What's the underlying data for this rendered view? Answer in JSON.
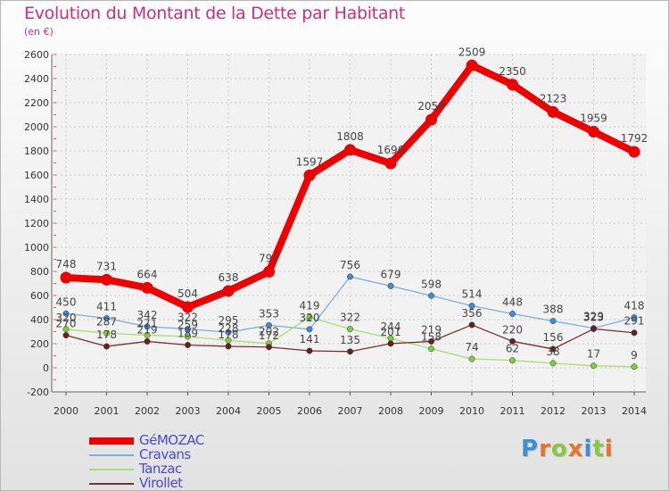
{
  "title": "Evolution du Montant de la Dette par Habitant",
  "unit": "(en €)",
  "logo": {
    "letters": [
      "P",
      "r",
      "o",
      "x",
      "i",
      "t",
      "i"
    ],
    "colors": [
      "#3b8fd4",
      "#e8732a",
      "#8cc63e",
      "#e8732a",
      "#3b8fd4",
      "#8cc63e",
      "#e8732a"
    ]
  },
  "chart_data": {
    "type": "line",
    "x": [
      "2000",
      "2001",
      "2002",
      "2003",
      "2004",
      "2005",
      "2006",
      "2007",
      "2008",
      "2009",
      "2010",
      "2011",
      "2012",
      "2013",
      "2014"
    ],
    "ylim": [
      -200,
      2600
    ],
    "yticks": [
      "-200",
      "0",
      "200",
      "400",
      "600",
      "800",
      "1000",
      "1200",
      "1400",
      "1600",
      "1800",
      "2000",
      "2200",
      "2400",
      "2600"
    ],
    "grid": true,
    "legend_position": "bottom-left",
    "series": [
      {
        "name": "GéMOZAC",
        "color": "#ee0000",
        "marker": "#ee0000",
        "width": 8,
        "radius": 6.5,
        "values": [
          748,
          731,
          664,
          504,
          638,
          797,
          1597,
          1808,
          1696,
          2059,
          2509,
          2350,
          2123,
          1959,
          1792
        ],
        "labels": [
          "748",
          "731",
          "664",
          "504",
          "638",
          "797",
          "1597",
          "1808",
          "1696",
          "2059",
          "2509",
          "2350",
          "2123",
          "1959",
          "1792"
        ]
      },
      {
        "name": "Cravans",
        "color": "#7aafe0",
        "marker": "#3d8ed6",
        "width": 1.3,
        "radius": 3.2,
        "values": [
          450,
          411,
          342,
          322,
          295,
          353,
          320,
          756,
          679,
          598,
          514,
          448,
          388,
          329,
          418
        ],
        "labels": [
          "450",
          "411",
          "342",
          "322",
          "295",
          "353",
          "320",
          "756",
          "679",
          "598",
          "514",
          "448",
          "388",
          "329",
          "418"
        ]
      },
      {
        "name": "Tanzac",
        "color": "#a7df72",
        "marker": "#7fcf3a",
        "width": 1.3,
        "radius": 3.2,
        "values": [
          320,
          287,
          271,
          259,
          228,
          202,
          419,
          322,
          244,
          158,
          74,
          62,
          38,
          17,
          9
        ],
        "labels": [
          "320",
          "287",
          "271",
          "259",
          "228",
          "202",
          "419",
          "322",
          "244",
          "158",
          "74",
          "62",
          "38",
          "17",
          "9"
        ]
      },
      {
        "name": "Virollet",
        "color": "#7a2f2f",
        "marker": "#6a1f1f",
        "width": 1.3,
        "radius": 3.2,
        "values": [
          270,
          178,
          219,
          189,
          178,
          172,
          141,
          135,
          201,
          219,
          356,
          220,
          156,
          323,
          291
        ],
        "labels": [
          "270",
          "178",
          "219",
          "189",
          "178",
          "172",
          "141",
          "135",
          "201",
          "219",
          "356",
          "220",
          "156",
          "323",
          "291"
        ]
      }
    ]
  }
}
